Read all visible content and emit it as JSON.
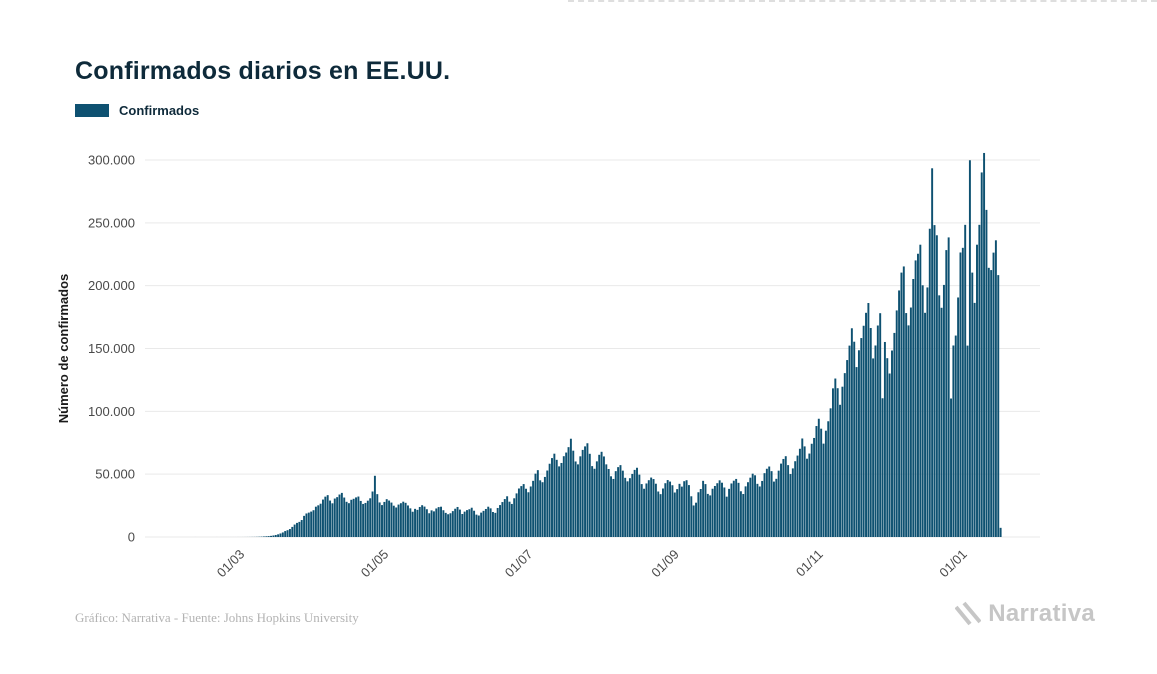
{
  "title": "Confirmados diarios en EE.UU.",
  "legend": {
    "label": "Confirmados"
  },
  "footer": {
    "credit": "Gráfico: Narrativa - Fuente: Johns Hopkins University",
    "brand": "Narrativa"
  },
  "colors": {
    "bar": "#0E5171",
    "title": "#0E2A3A",
    "axis_text": "#4A4A4A",
    "axis_title": "#1A1A1A",
    "grid": "#E9E9E9",
    "footer_text": "#B3B3B3",
    "brand_gray": "#C6C6C6"
  },
  "chart_data": {
    "type": "bar",
    "title": "Confirmados diarios en EE.UU.",
    "series_name": "Confirmados",
    "xlabel": "",
    "ylabel": "Número de confirmados",
    "ylim": [
      0,
      300000
    ],
    "grid": "horizontal",
    "legend_position": "top-left",
    "frequency": "daily",
    "start_date": "2020-01-22",
    "y_ticks": [
      0,
      50000,
      100000,
      150000,
      200000,
      250000,
      300000
    ],
    "y_tick_labels": [
      "0",
      "50.000",
      "100.000",
      "150.000",
      "200.000",
      "250.000",
      "300.000"
    ],
    "x_tick_indices": [
      39,
      100,
      161,
      223,
      284,
      345
    ],
    "x_tick_labels": [
      "01/03",
      "01/05",
      "01/07",
      "01/09",
      "01/11",
      "01/01"
    ],
    "values": [
      1,
      0,
      2,
      0,
      1,
      3,
      0,
      2,
      0,
      1,
      2,
      0,
      3,
      1,
      0,
      2,
      1,
      0,
      4,
      2,
      1,
      0,
      3,
      2,
      1,
      0,
      2,
      4,
      3,
      5,
      6,
      4,
      8,
      6,
      10,
      9,
      14,
      12,
      24,
      30,
      45,
      60,
      85,
      110,
      150,
      220,
      300,
      420,
      550,
      710,
      910,
      1220,
      1610,
      2120,
      2820,
      3620,
      4710,
      5420,
      6340,
      8020,
      9910,
      11220,
      12020,
      13510,
      16820,
      18720,
      19410,
      20220,
      21320,
      24120,
      25200,
      26500,
      29800,
      32100,
      33300,
      29000,
      26800,
      30600,
      31700,
      33800,
      35100,
      31400,
      28000,
      26900,
      29600,
      30400,
      31500,
      32200,
      28700,
      26300,
      27100,
      28900,
      30800,
      36200,
      48700,
      34100,
      27500,
      25400,
      27900,
      30100,
      29000,
      27400,
      24900,
      23500,
      25800,
      26900,
      28100,
      27200,
      25100,
      22800,
      20100,
      22400,
      21600,
      23900,
      25300,
      24200,
      22100,
      18900,
      21200,
      20400,
      22700,
      23800,
      24100,
      21300,
      19200,
      18100,
      18900,
      20600,
      22500,
      23900,
      21800,
      18300,
      20200,
      21400,
      22100,
      23300,
      20900,
      17800,
      17100,
      19400,
      20800,
      22300,
      24100,
      22800,
      19900,
      19200,
      23100,
      25400,
      27800,
      30200,
      32400,
      28100,
      26300,
      30800,
      34700,
      38600,
      40500,
      42100,
      38400,
      35600,
      40200,
      44700,
      50400,
      53200,
      45100,
      43600,
      47800,
      52900,
      58300,
      62800,
      66300,
      61400,
      56200,
      58900,
      64300,
      67200,
      71500,
      78200,
      68700,
      60100,
      57800,
      64200,
      69300,
      72100,
      74600,
      66200,
      56400,
      54300,
      60200,
      65400,
      67800,
      64100,
      57800,
      54100,
      48300,
      46200,
      52400,
      55600,
      57200,
      52800,
      47100,
      44300,
      46800,
      50200,
      53400,
      55100,
      49600,
      42100,
      38400,
      42600,
      45200,
      47300,
      46100,
      42400,
      36200,
      34100,
      38600,
      42800,
      45300,
      44100,
      41200,
      35400,
      38100,
      42300,
      40100,
      44400,
      45200,
      41300,
      32400,
      25100,
      27300,
      35600,
      38200,
      44700,
      42100,
      34300,
      33100,
      38400,
      40600,
      42800,
      45100,
      43200,
      39400,
      32100,
      38300,
      42600,
      44800,
      46200,
      43100,
      36400,
      34200,
      40300,
      43600,
      47200,
      50400,
      49100,
      42300,
      40200,
      44600,
      50800,
      54300,
      56100,
      52400,
      44100,
      46300,
      52800,
      58400,
      62100,
      64300,
      57200,
      50100,
      54600,
      60300,
      64800,
      70200,
      78400,
      72100,
      62300,
      66400,
      74200,
      78800,
      88300,
      94100,
      86200,
      74300,
      84600,
      92100,
      102400,
      118300,
      126100,
      118400,
      105200,
      119600,
      130400,
      140800,
      152300,
      166100,
      155400,
      135200,
      148600,
      158300,
      168100,
      178400,
      186200,
      166300,
      142100,
      152400,
      168300,
      178100,
      110400,
      155200,
      142300,
      130100,
      148400,
      162400,
      180300,
      196200,
      210400,
      215300,
      178200,
      168400,
      182600,
      205300,
      220100,
      225400,
      232600,
      200300,
      178400,
      198600,
      245300,
      293400,
      248200,
      240100,
      192300,
      182400,
      200600,
      228300,
      238400,
      110200,
      152400,
      160300,
      190600,
      226400,
      230100,
      248400,
      152300,
      299800,
      210400,
      186300,
      232600,
      248400,
      290100,
      305600,
      260300,
      214200,
      212400,
      226300,
      236100,
      208400,
      7300
    ]
  }
}
